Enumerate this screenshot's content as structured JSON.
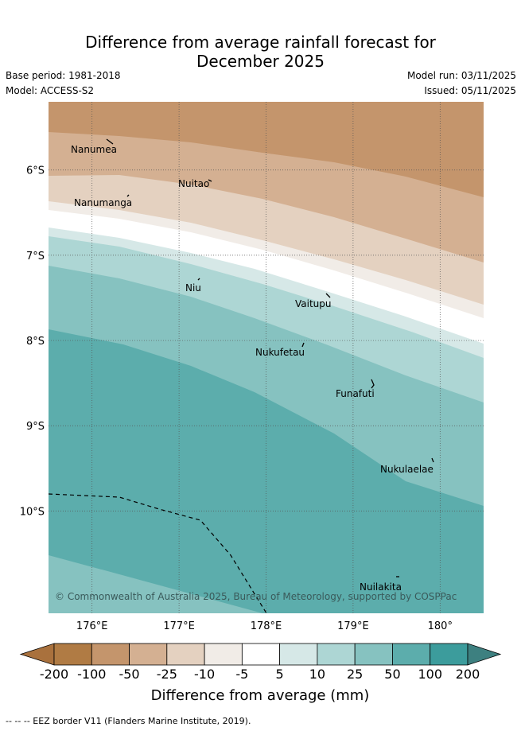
{
  "title": {
    "line1": "Difference from average rainfall forecast for",
    "line2": "December 2025"
  },
  "meta": {
    "base_period": "Base period: 1981-2018",
    "model": "Model: ACCESS-S2",
    "model_run": "Model run: 03/11/2025",
    "issued": "Issued: 05/11/2025"
  },
  "map": {
    "lon_range": [
      175.5,
      180.5
    ],
    "lat_range": [
      -11.2,
      -5.2
    ],
    "lon_ticks": [
      {
        "value": 176,
        "label": "176°E"
      },
      {
        "value": 177,
        "label": "177°E"
      },
      {
        "value": 178,
        "label": "178°E"
      },
      {
        "value": 179,
        "label": "179°E"
      },
      {
        "value": 180,
        "label": "180°"
      }
    ],
    "lat_ticks": [
      {
        "value": -6,
        "label": "6°S"
      },
      {
        "value": -7,
        "label": "7°S"
      },
      {
        "value": -8,
        "label": "8°S"
      },
      {
        "value": -9,
        "label": "9°S"
      },
      {
        "value": -10,
        "label": "10°S"
      }
    ],
    "islands": [
      {
        "name": "Nanumea",
        "lon": 176.13,
        "lat": -5.68
      },
      {
        "name": "Nuitao",
        "lon": 177.33,
        "lat": -6.11
      },
      {
        "name": "Nanumanga",
        "lon": 176.32,
        "lat": -6.29
      },
      {
        "name": "Niu",
        "lon": 177.16,
        "lat": -7.29
      },
      {
        "name": "Vaitupu",
        "lon": 178.68,
        "lat": -7.48
      },
      {
        "name": "Nukufetau",
        "lon": 178.38,
        "lat": -8.03
      },
      {
        "name": "Funafuti",
        "lon": 179.2,
        "lat": -8.52
      },
      {
        "name": "Nukulaelae",
        "lon": 179.83,
        "lat": -9.38
      },
      {
        "name": "Nuilakita",
        "lon": 179.51,
        "lat": -10.78
      }
    ],
    "copyright": "© Commonwealth of Australia 2025, Bureau of Meteorology, supported by COSPPac"
  },
  "legend": {
    "colors": [
      "#a9713d",
      "#b07b44",
      "#c4956c",
      "#d4b092",
      "#e4d1c0",
      "#f1ece7",
      "#ffffff",
      "#d6e8e7",
      "#add6d4",
      "#86c2c0",
      "#5cadac",
      "#3c9c9c",
      "#3d8080"
    ],
    "tick_labels": [
      "-200",
      "-100",
      "-50",
      "-25",
      "-10",
      "-5",
      "5",
      "10",
      "25",
      "50",
      "100",
      "200"
    ],
    "axis_label": "Difference from average (mm)"
  },
  "footnote": "-- -- -- EEZ border V11 (Flanders Marine Institute, 2019)."
}
